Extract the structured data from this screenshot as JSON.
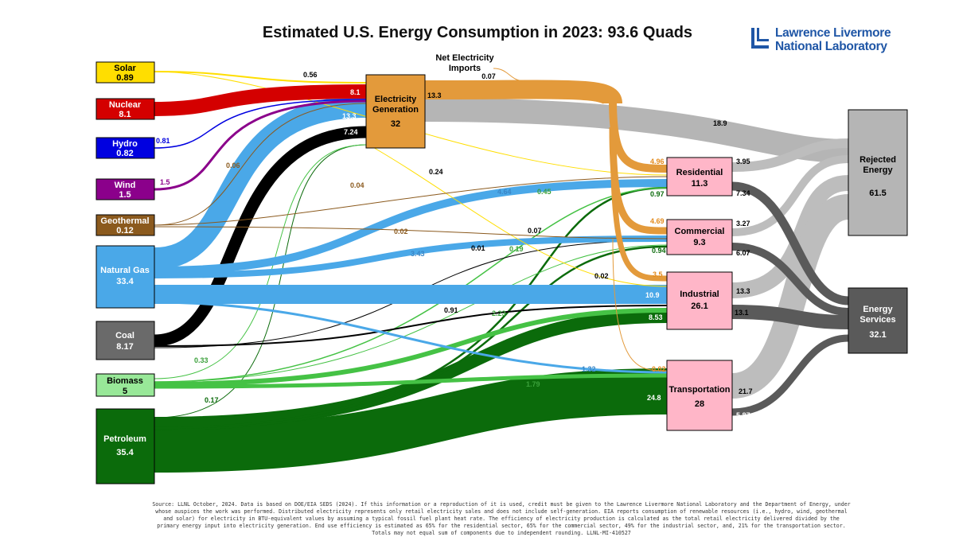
{
  "title": "Estimated U.S. Energy Consumption in 2023: 93.6 Quads",
  "logo": {
    "line1": "Lawrence Livermore",
    "line2": "National Laboratory",
    "color": "#1f56a6"
  },
  "colors": {
    "solar": "#ffde00",
    "nuclear": "#d40000",
    "hydro": "#0000e0",
    "wind": "#8b008b",
    "geothermal": "#8b5a1e",
    "natural_gas": "#4aa8e8",
    "coal": "#000000",
    "biomass": "#45c245",
    "petroleum": "#0b6b0b",
    "electricity": "#e39a3b",
    "sector": "#ffb6c8",
    "rejected": "#b5b5b5",
    "services": "#5a5a5a"
  },
  "sources": [
    {
      "id": "solar",
      "name": "Solar",
      "value": "0.89"
    },
    {
      "id": "nuclear",
      "name": "Nuclear",
      "value": "8.1"
    },
    {
      "id": "hydro",
      "name": "Hydro",
      "value": "0.82"
    },
    {
      "id": "wind",
      "name": "Wind",
      "value": "1.5"
    },
    {
      "id": "geothermal",
      "name": "Geothermal",
      "value": "0.12"
    },
    {
      "id": "natural_gas",
      "name": "Natural Gas",
      "value": "33.4"
    },
    {
      "id": "coal",
      "name": "Coal",
      "value": "8.17"
    },
    {
      "id": "biomass",
      "name": "Biomass",
      "value": "5"
    },
    {
      "id": "petroleum",
      "name": "Petroleum",
      "value": "35.4"
    }
  ],
  "electricity": {
    "name_line1": "Electricity",
    "name_line2": "Generation",
    "value": "32"
  },
  "net_imports": {
    "line1": "Net Electricity",
    "line2": "Imports",
    "value": "0.07"
  },
  "sectors": [
    {
      "id": "residential",
      "name": "Residential",
      "value": "11.3"
    },
    {
      "id": "commercial",
      "name": "Commercial",
      "value": "9.3"
    },
    {
      "id": "industrial",
      "name": "Industrial",
      "value": "26.1"
    },
    {
      "id": "transportation",
      "name": "Transportation",
      "value": "28"
    }
  ],
  "rejected": {
    "line1": "Rejected",
    "line2": "Energy",
    "value": "61.5"
  },
  "services": {
    "line1": "Energy",
    "line2": "Services",
    "value": "32.1"
  },
  "flows": [
    {
      "from": "solar",
      "to": "electricity",
      "value": "0.56"
    },
    {
      "from": "nuclear",
      "to": "electricity",
      "value": "8.1"
    },
    {
      "from": "hydro",
      "to": "electricity",
      "value": "0.81"
    },
    {
      "from": "wind",
      "to": "electricity",
      "value": "1.5"
    },
    {
      "from": "geothermal",
      "to": "electricity",
      "value": "0.06"
    },
    {
      "from": "natural_gas",
      "to": "electricity",
      "value": "13.3"
    },
    {
      "from": "coal",
      "to": "electricity",
      "value": "7.24"
    },
    {
      "from": "biomass",
      "to": "electricity",
      "value": "0.33"
    },
    {
      "from": "petroleum",
      "to": "electricity",
      "value": "0.17"
    },
    {
      "from": "solar",
      "to": "residential",
      "value": "0.24"
    },
    {
      "from": "geothermal",
      "to": "residential",
      "value": "0.04"
    },
    {
      "from": "geothermal",
      "to": "commercial",
      "value": "0.02"
    },
    {
      "from": "natural_gas",
      "to": "residential",
      "value": "4.64"
    },
    {
      "from": "natural_gas",
      "to": "commercial",
      "value": "3.43"
    },
    {
      "from": "natural_gas",
      "to": "industrial",
      "value": "10.9"
    },
    {
      "from": "natural_gas",
      "to": "transportation",
      "value": "1.32"
    },
    {
      "from": "coal",
      "to": "commercial",
      "value": "0.01"
    },
    {
      "from": "coal",
      "to": "industrial",
      "value": "0.91"
    },
    {
      "from": "solar",
      "to": "industrial",
      "value": "0.02"
    },
    {
      "from": "biomass",
      "to": "residential",
      "value": "0.45"
    },
    {
      "from": "biomass",
      "to": "commercial",
      "value": "0.19"
    },
    {
      "from": "biomass",
      "to": "industrial",
      "value": "2.23"
    },
    {
      "from": "biomass",
      "to": "transportation",
      "value": "1.79"
    },
    {
      "from": "petroleum",
      "to": "residential",
      "value": "0.97"
    },
    {
      "from": "petroleum",
      "to": "commercial",
      "value": "0.94"
    },
    {
      "from": "petroleum",
      "to": "industrial",
      "value": "8.53"
    },
    {
      "from": "petroleum",
      "to": "transportation",
      "value": "24.8"
    },
    {
      "from": "electricity",
      "to": "residential",
      "value": "4.96"
    },
    {
      "from": "electricity",
      "to": "commercial",
      "value": "4.69"
    },
    {
      "from": "electricity",
      "to": "industrial",
      "value": "3.5"
    },
    {
      "from": "electricity",
      "to": "transportation",
      "value": "0.02"
    },
    {
      "from": "electricity",
      "to": "rejected",
      "value": "18.9"
    },
    {
      "from": "electricity",
      "to": "electricity_out",
      "value": "13.3"
    },
    {
      "from": "commercial_sector_misc",
      "to": "commercial",
      "value": "0.07"
    },
    {
      "from": "residential",
      "to": "rejected",
      "value": "3.95"
    },
    {
      "from": "residential",
      "to": "services",
      "value": "7.34"
    },
    {
      "from": "commercial",
      "to": "rejected",
      "value": "3.27"
    },
    {
      "from": "commercial",
      "to": "services",
      "value": "6.07"
    },
    {
      "from": "industrial",
      "to": "rejected",
      "value": "13.3"
    },
    {
      "from": "industrial",
      "to": "services",
      "value": "13.1"
    },
    {
      "from": "transportation",
      "to": "rejected",
      "value": "21.7"
    },
    {
      "from": "transportation",
      "to": "services",
      "value": "5.87"
    }
  ],
  "footer": "Source: LLNL October, 2024. Data is based on DOE/EIA SEDS (2024). If this information or a reproduction of it is used, credit must be given to the Lawrence Livermore National Laboratory and the Department of Energy, under whose auspices the work was performed. Distributed electricity represents only retail electricity sales and does not include self-generation.  EIA reports consumption of renewable resources (i.e., hydro, wind, geothermal and solar) for electricity in BTU-equivalent values by assuming a typical fossil fuel plant heat rate.  The efficiency of electricity production is calculated as the total retail electricity delivered divided by the primary energy input into electricity generation.  End use efficiency is estimated as 65% for the residential sector, 65% for the commercial sector, 49% for the industrial sector, and, 21% for the transportation sector. Totals may not equal sum of components due to independent rounding. LLNL-MI-410527"
}
